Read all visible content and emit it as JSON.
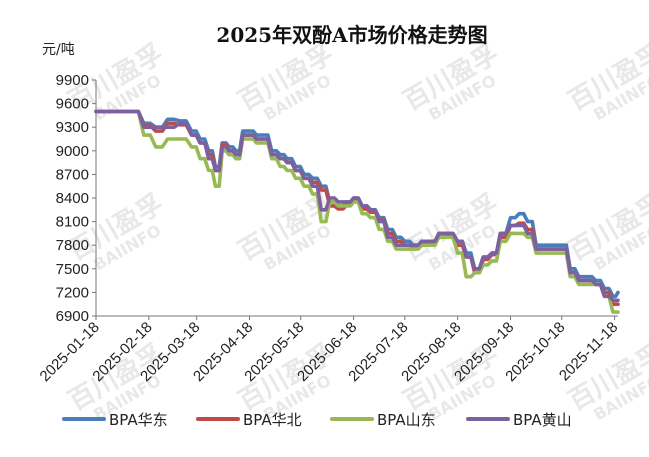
{
  "watermark": {
    "line1": "百川盈孚",
    "line2": "BAIINFO"
  },
  "chart_data": {
    "type": "line",
    "title": "2025年双酚A市场价格走势图",
    "ylabel": "元/吨",
    "ylim": [
      6900,
      9900
    ],
    "yticks": [
      6900,
      7200,
      7500,
      7800,
      8100,
      8400,
      8700,
      9000,
      9300,
      9600,
      9900
    ],
    "xticks": [
      "2025-01-18",
      "2025-02-18",
      "2025-03-18",
      "2025-04-18",
      "2025-05-18",
      "2025-06-18",
      "2025-07-18",
      "2025-08-18",
      "2025-09-18",
      "2025-10-18",
      "2025-11-18"
    ],
    "xlim": [
      "2025-01-18",
      "2025-11-20"
    ],
    "grid": false,
    "legend_position": "bottom",
    "x": [
      "2025-01-18",
      "2025-02-01",
      "2025-02-08",
      "2025-02-15",
      "2025-02-22",
      "2025-03-01",
      "2025-03-08",
      "2025-03-15",
      "2025-03-20",
      "2025-03-25",
      "2025-03-29",
      "2025-04-02",
      "2025-04-06",
      "2025-04-10",
      "2025-04-14",
      "2025-04-18",
      "2025-04-22",
      "2025-04-26",
      "2025-05-01",
      "2025-05-06",
      "2025-05-10",
      "2025-05-15",
      "2025-05-20",
      "2025-05-25",
      "2025-05-30",
      "2025-06-04",
      "2025-06-09",
      "2025-06-14",
      "2025-06-18",
      "2025-06-23",
      "2025-06-28",
      "2025-07-03",
      "2025-07-08",
      "2025-07-13",
      "2025-07-18",
      "2025-07-23",
      "2025-07-28",
      "2025-08-02",
      "2025-08-07",
      "2025-08-12",
      "2025-08-18",
      "2025-08-23",
      "2025-08-28",
      "2025-09-02",
      "2025-09-07",
      "2025-09-12",
      "2025-09-18",
      "2025-09-23",
      "2025-09-28",
      "2025-10-03",
      "2025-10-08",
      "2025-10-13",
      "2025-10-18",
      "2025-10-23",
      "2025-10-28",
      "2025-11-02",
      "2025-11-07",
      "2025-11-12",
      "2025-11-17",
      "2025-11-20"
    ],
    "series": [
      {
        "name": "BPA华东",
        "color": "#4a7ebb",
        "values": [
          9500,
          9500,
          9500,
          9350,
          9300,
          9400,
          9380,
          9250,
          9150,
          9000,
          8800,
          9100,
          9050,
          9000,
          9250,
          9250,
          9200,
          9200,
          9000,
          8950,
          8900,
          8800,
          8700,
          8650,
          8550,
          8350,
          8300,
          8350,
          8400,
          8300,
          8250,
          8150,
          8000,
          7900,
          7850,
          7800,
          7850,
          7850,
          7950,
          7950,
          7850,
          7700,
          7500,
          7650,
          7700,
          7950,
          8150,
          8200,
          8100,
          7800,
          7800,
          7800,
          7800,
          7500,
          7400,
          7400,
          7350,
          7250,
          7150,
          7200
        ]
      },
      {
        "name": "BPA华北",
        "color": "#be4b48",
        "values": [
          9500,
          9500,
          9500,
          9320,
          9250,
          9350,
          9330,
          9200,
          9100,
          8950,
          8750,
          9080,
          9000,
          8950,
          9200,
          9200,
          9150,
          9150,
          8950,
          8900,
          8850,
          8750,
          8650,
          8600,
          8500,
          8300,
          8260,
          8310,
          8360,
          8260,
          8220,
          8120,
          7950,
          7850,
          7800,
          7780,
          7820,
          7830,
          7930,
          7930,
          7800,
          7650,
          7450,
          7620,
          7680,
          7900,
          8050,
          8080,
          8000,
          7750,
          7750,
          7750,
          7750,
          7450,
          7350,
          7350,
          7300,
          7200,
          7050,
          7050
        ]
      },
      {
        "name": "BPA山东",
        "color": "#98b954",
        "values": [
          9500,
          9500,
          9500,
          9200,
          9050,
          9150,
          9150,
          9050,
          8900,
          8750,
          8550,
          9000,
          8950,
          8900,
          9150,
          9150,
          9100,
          9100,
          8900,
          8800,
          8750,
          8650,
          8550,
          8450,
          8100,
          8350,
          8300,
          8300,
          8350,
          8200,
          8150,
          8000,
          7850,
          7750,
          7750,
          7750,
          7800,
          7800,
          7900,
          7900,
          7700,
          7400,
          7450,
          7550,
          7600,
          7850,
          7950,
          7950,
          7900,
          7700,
          7700,
          7700,
          7700,
          7400,
          7300,
          7300,
          7300,
          7150,
          6950,
          6950
        ]
      },
      {
        "name": "BPA黄山",
        "color": "#7d60a0",
        "values": [
          9500,
          9500,
          9500,
          9300,
          9300,
          9300,
          9350,
          9200,
          9100,
          8900,
          8750,
          9050,
          9000,
          8950,
          9200,
          9200,
          9150,
          9150,
          8950,
          8900,
          8850,
          8750,
          8650,
          8550,
          8250,
          8400,
          8350,
          8350,
          8400,
          8300,
          8250,
          8100,
          7900,
          7800,
          7800,
          7800,
          7850,
          7850,
          7950,
          7950,
          7850,
          7650,
          7500,
          7650,
          7700,
          7950,
          8050,
          8050,
          7950,
          7750,
          7750,
          7750,
          7750,
          7450,
          7350,
          7350,
          7300,
          7150,
          7100,
          7100
        ]
      }
    ]
  }
}
